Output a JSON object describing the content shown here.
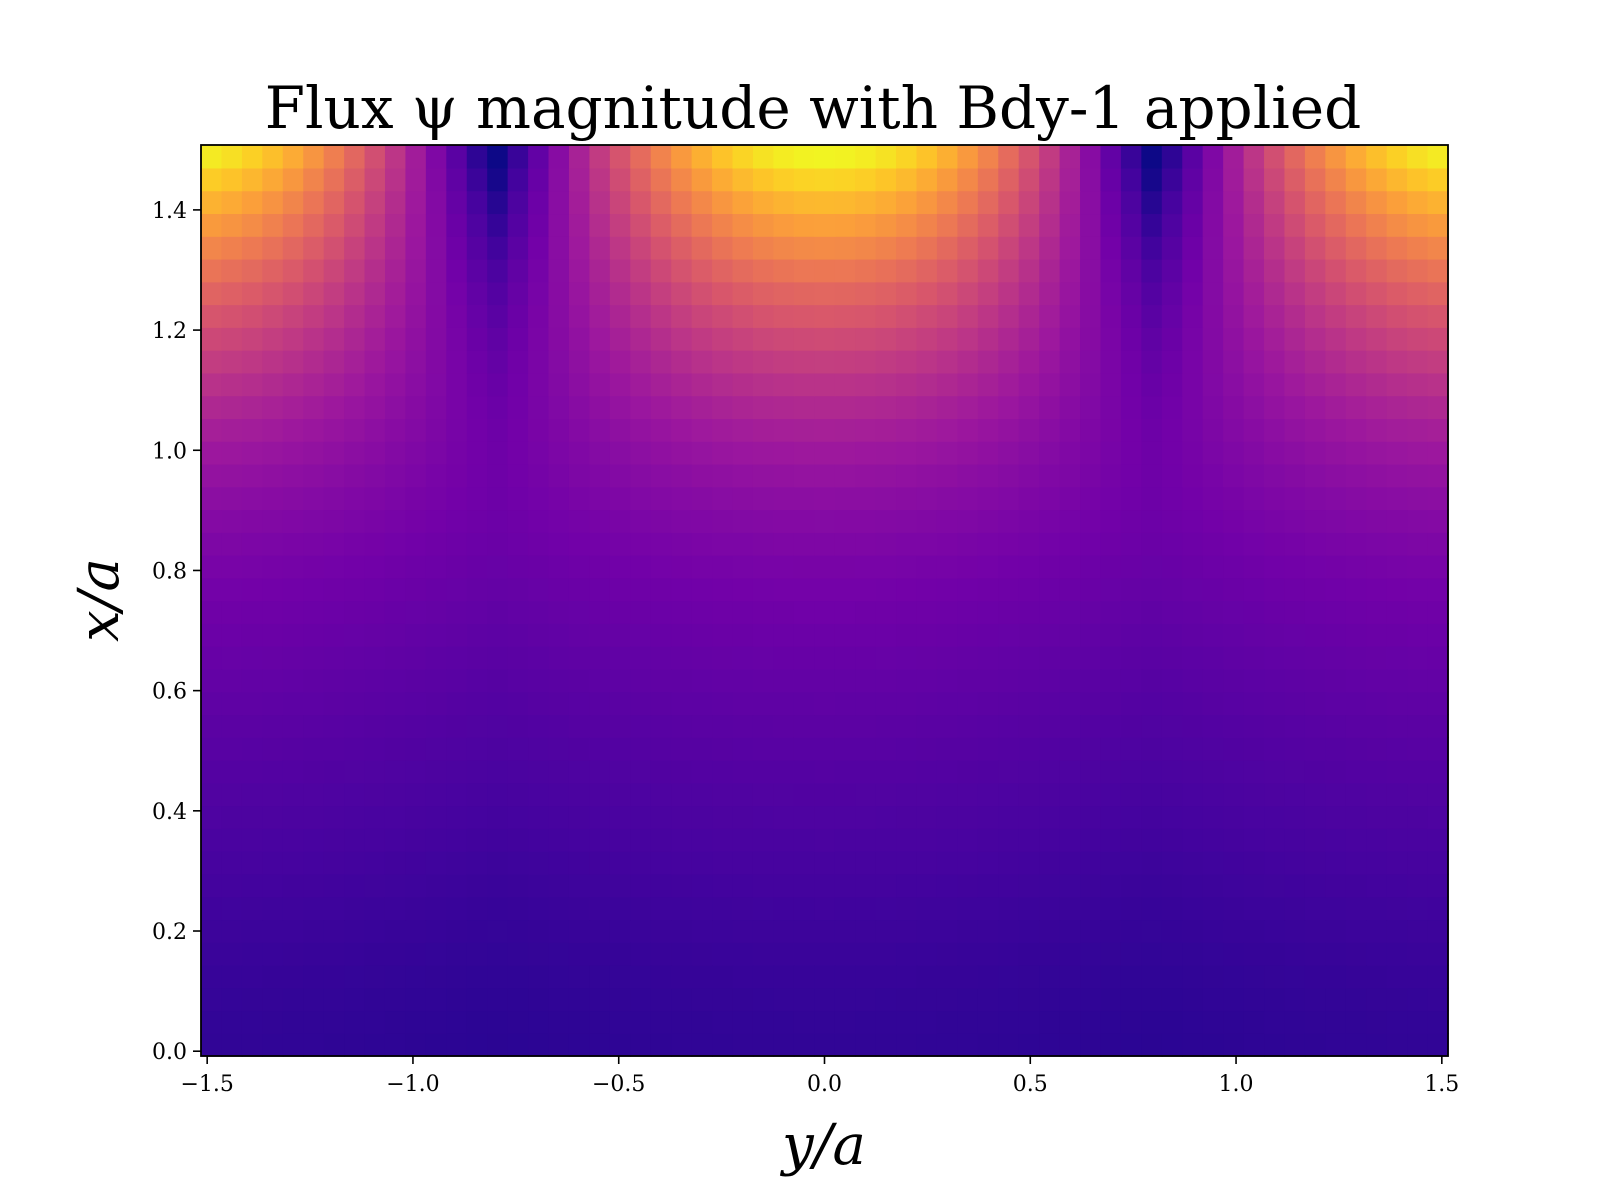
{
  "chart_data": {
    "type": "heatmap",
    "title": "Flux ψ magnitude with Bdy-1 applied",
    "xlabel": "y/a",
    "ylabel": "x/a",
    "xlim": [
      -1.515,
      1.515
    ],
    "ylim": [
      -0.008,
      1.508
    ],
    "x_ticks": [
      -1.5,
      -1.0,
      -0.5,
      0.0,
      0.5,
      1.0,
      1.5
    ],
    "x_tick_labels": [
      "−1.5",
      "−1.0",
      "−0.5",
      "0.0",
      "0.5",
      "1.0",
      "1.5"
    ],
    "y_ticks": [
      0.0,
      0.2,
      0.4,
      0.6,
      0.8,
      1.0,
      1.2,
      1.4
    ],
    "y_tick_labels": [
      "0.0",
      "0.2",
      "0.4",
      "0.6",
      "0.8",
      "1.0",
      "1.2",
      "1.4"
    ],
    "colormap": "plasma",
    "colormap_stops": [
      "#0d0887",
      "#46039f",
      "#7201a8",
      "#9c179e",
      "#bd3786",
      "#d8576b",
      "#ed7953",
      "#fb9f3a",
      "#fdca26",
      "#f0f921"
    ],
    "grid": {
      "nx": 61,
      "ny": 40,
      "y_range": [
        -1.515,
        1.515
      ],
      "x_range": [
        -0.008,
        1.508
      ],
      "field_description": "magnitude peaks at top edge near y/a=0 and y/a=±1.5, minima near y/a=±0.8 at top, decays toward x/a=0"
    },
    "colorbar": false
  }
}
